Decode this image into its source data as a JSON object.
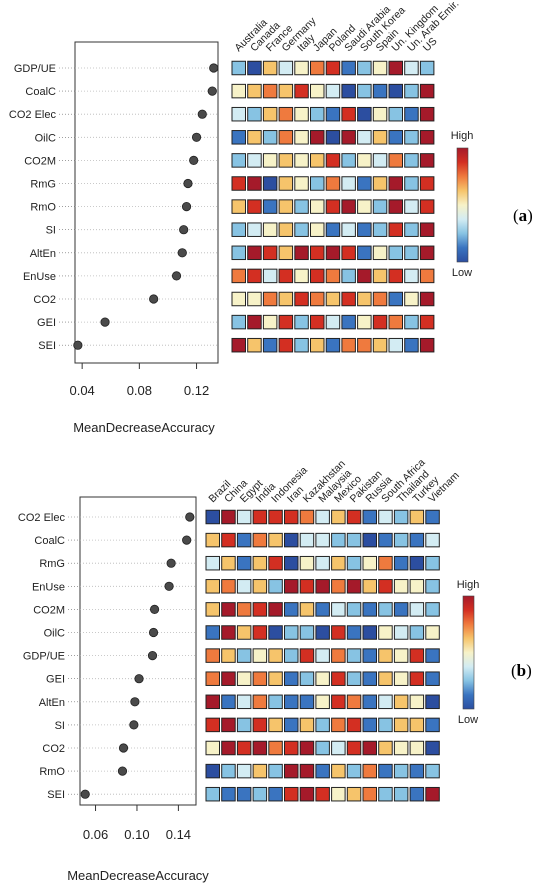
{
  "panel_labels": {
    "a": "a",
    "b": "b"
  },
  "legend": {
    "high": "High",
    "low": "Low"
  },
  "chart_data": [
    {
      "type": "scatter",
      "subtype": "dotchart-with-heatmap",
      "panel": "a",
      "xlabel": "MeanDecreaseAccuracy",
      "xlim": [
        0.035,
        0.135
      ],
      "xticks": [
        0.04,
        0.08,
        0.12
      ],
      "xtick_labels": [
        "0.04",
        "0.08",
        "0.12"
      ],
      "variables": [
        "GDP/UE",
        "CoalC",
        "CO2 Elec",
        "OilC",
        "CO2M",
        "RmG",
        "RmO",
        "SI",
        "AltEn",
        "EnUse",
        "CO2",
        "GEI",
        "SEI"
      ],
      "values": [
        0.132,
        0.131,
        0.124,
        0.12,
        0.118,
        0.114,
        0.113,
        0.111,
        0.11,
        0.106,
        0.09,
        0.056,
        0.037
      ],
      "countries": [
        "Australia",
        "Canada",
        "France",
        "Germany",
        "Italy",
        "Japan",
        "Poland",
        "Saudi Arabia",
        "South Korea",
        "Spain",
        "Un. Kingdom",
        "Un. Arab Emir.",
        "US"
      ],
      "heatmap_scale": "1 = Low (blue) to 9 = High (dark red)",
      "heatmap": [
        [
          3,
          1,
          6,
          4,
          5,
          7,
          8,
          2,
          3,
          5,
          9,
          4,
          3
        ],
        [
          5,
          6,
          7,
          6,
          8,
          5,
          4,
          1,
          3,
          2,
          1,
          3,
          9
        ],
        [
          4,
          3,
          6,
          7,
          5,
          3,
          2,
          8,
          1,
          5,
          3,
          2,
          9
        ],
        [
          2,
          6,
          3,
          7,
          5,
          9,
          1,
          9,
          4,
          6,
          2,
          3,
          9
        ],
        [
          3,
          4,
          5,
          6,
          5,
          6,
          8,
          3,
          5,
          4,
          7,
          3,
          9
        ],
        [
          8,
          9,
          1,
          6,
          5,
          3,
          7,
          4,
          2,
          6,
          9,
          3,
          8
        ],
        [
          6,
          8,
          2,
          6,
          3,
          5,
          8,
          9,
          5,
          3,
          9,
          4,
          8
        ],
        [
          3,
          4,
          5,
          6,
          3,
          5,
          2,
          4,
          2,
          3,
          8,
          3,
          9
        ],
        [
          3,
          9,
          8,
          6,
          9,
          8,
          9,
          8,
          2,
          5,
          3,
          3,
          9
        ],
        [
          7,
          8,
          4,
          8,
          5,
          8,
          7,
          3,
          9,
          6,
          8,
          4,
          7
        ],
        [
          5,
          5,
          7,
          6,
          8,
          7,
          6,
          8,
          6,
          7,
          2,
          5,
          9
        ],
        [
          3,
          9,
          5,
          8,
          3,
          8,
          4,
          2,
          5,
          8,
          7,
          3,
          8
        ],
        [
          9,
          6,
          2,
          8,
          3,
          6,
          2,
          7,
          7,
          6,
          4,
          2,
          9
        ]
      ]
    },
    {
      "type": "scatter",
      "subtype": "dotchart-with-heatmap",
      "panel": "b",
      "xlabel": "MeanDecreaseAccuracy",
      "xlim": [
        0.045,
        0.157
      ],
      "xticks": [
        0.06,
        0.1,
        0.14
      ],
      "xtick_labels": [
        "0.06",
        "0.10",
        "0.14"
      ],
      "variables": [
        "CO2 Elec",
        "CoalC",
        "RmG",
        "EnUse",
        "CO2M",
        "OilC",
        "GDP/UE",
        "GEI",
        "AltEn",
        "SI",
        "CO2",
        "RmO",
        "SEI"
      ],
      "values": [
        0.151,
        0.148,
        0.133,
        0.131,
        0.117,
        0.116,
        0.115,
        0.102,
        0.098,
        0.097,
        0.087,
        0.086,
        0.05
      ],
      "countries": [
        "Brazil",
        "China",
        "Egypt",
        "India",
        "Indonesia",
        "Iran",
        "Kazakhstan",
        "Malaysia",
        "Mexico",
        "Pakistan",
        "Russia",
        "South Africa",
        "Thailand",
        "Turkey",
        "Vietnam"
      ],
      "heatmap_scale": "1 = Low (blue) to 9 = High (dark red)",
      "heatmap": [
        [
          1,
          9,
          4,
          8,
          8,
          8,
          7,
          4,
          6,
          8,
          2,
          4,
          3,
          6,
          2
        ],
        [
          6,
          8,
          2,
          7,
          6,
          1,
          4,
          4,
          3,
          3,
          1,
          2,
          3,
          2,
          4
        ],
        [
          4,
          6,
          2,
          6,
          8,
          1,
          5,
          4,
          6,
          3,
          5,
          7,
          2,
          1,
          3
        ],
        [
          6,
          7,
          4,
          6,
          3,
          9,
          8,
          9,
          7,
          9,
          6,
          8,
          5,
          5,
          3
        ],
        [
          6,
          9,
          7,
          8,
          9,
          2,
          6,
          2,
          4,
          3,
          2,
          3,
          2,
          4,
          3
        ],
        [
          2,
          9,
          6,
          8,
          1,
          3,
          3,
          1,
          8,
          2,
          1,
          5,
          4,
          3,
          5
        ],
        [
          7,
          6,
          3,
          5,
          6,
          3,
          8,
          4,
          7,
          3,
          2,
          6,
          5,
          8,
          2
        ],
        [
          7,
          9,
          5,
          7,
          6,
          2,
          3,
          5,
          8,
          3,
          2,
          6,
          5,
          8,
          2
        ],
        [
          9,
          2,
          4,
          7,
          3,
          2,
          2,
          5,
          8,
          7,
          2,
          4,
          6,
          5,
          1
        ],
        [
          8,
          9,
          3,
          8,
          6,
          2,
          6,
          3,
          7,
          8,
          2,
          3,
          6,
          6,
          2
        ],
        [
          5,
          9,
          8,
          9,
          7,
          8,
          9,
          3,
          4,
          8,
          9,
          6,
          5,
          5,
          1
        ],
        [
          1,
          3,
          4,
          6,
          3,
          9,
          9,
          2,
          6,
          3,
          7,
          2,
          3,
          2,
          3
        ],
        [
          3,
          2,
          2,
          3,
          2,
          8,
          9,
          8,
          5,
          6,
          7,
          3,
          3,
          2,
          9
        ]
      ]
    }
  ]
}
